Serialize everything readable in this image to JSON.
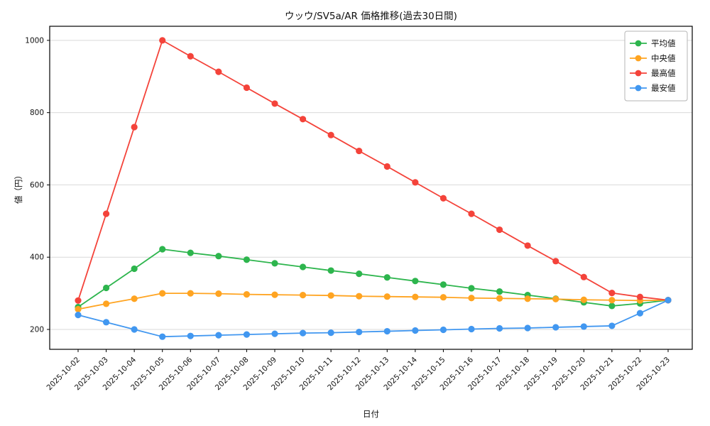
{
  "chart_data": {
    "type": "line",
    "title": "ウッウ/SV5a/AR 価格推移(過去30日間)",
    "xlabel": "日付",
    "ylabel": "値（円）",
    "ylim": [
      145,
      1039
    ],
    "yticks": [
      200,
      400,
      600,
      800,
      1000
    ],
    "grid": "horizontal",
    "legend_position": "top-right",
    "x": [
      "2025-10-02",
      "2025-10-03",
      "2025-10-04",
      "2025-10-05",
      "2025-10-06",
      "2025-10-07",
      "2025-10-08",
      "2025-10-09",
      "2025-10-10",
      "2025-10-11",
      "2025-10-12",
      "2025-10-13",
      "2025-10-14",
      "2025-10-15",
      "2025-10-16",
      "2025-10-17",
      "2025-10-18",
      "2025-10-19",
      "2025-10-20",
      "2025-10-21",
      "2025-10-22",
      "2025-10-23"
    ],
    "series": [
      {
        "key": "average",
        "name": "平均値",
        "color": "#2db54d",
        "values": [
          262,
          315,
          368,
          422,
          412,
          403,
          393,
          383,
          373,
          363,
          354,
          344,
          334,
          324,
          314,
          305,
          295,
          285,
          275,
          265,
          272,
          281
        ]
      },
      {
        "key": "median",
        "name": "中央値",
        "color": "#ffa421",
        "values": [
          256,
          271,
          285,
          300,
          300,
          299,
          297,
          296,
          295,
          294,
          292,
          291,
          290,
          289,
          287,
          286,
          285,
          284,
          282,
          281,
          280,
          281
        ]
      },
      {
        "key": "max",
        "name": "最高値",
        "color": "#f4433a",
        "values": [
          280,
          520,
          760,
          1000,
          956,
          913,
          869,
          825,
          782,
          738,
          694,
          651,
          607,
          563,
          520,
          476,
          432,
          389,
          345,
          301,
          290,
          281
        ]
      },
      {
        "key": "min",
        "name": "最安値",
        "color": "#4197f0",
        "values": [
          240,
          220,
          200,
          180,
          182,
          184,
          186,
          188,
          190,
          191,
          193,
          195,
          197,
          199,
          201,
          203,
          204,
          206,
          208,
          210,
          245,
          281
        ]
      }
    ]
  }
}
